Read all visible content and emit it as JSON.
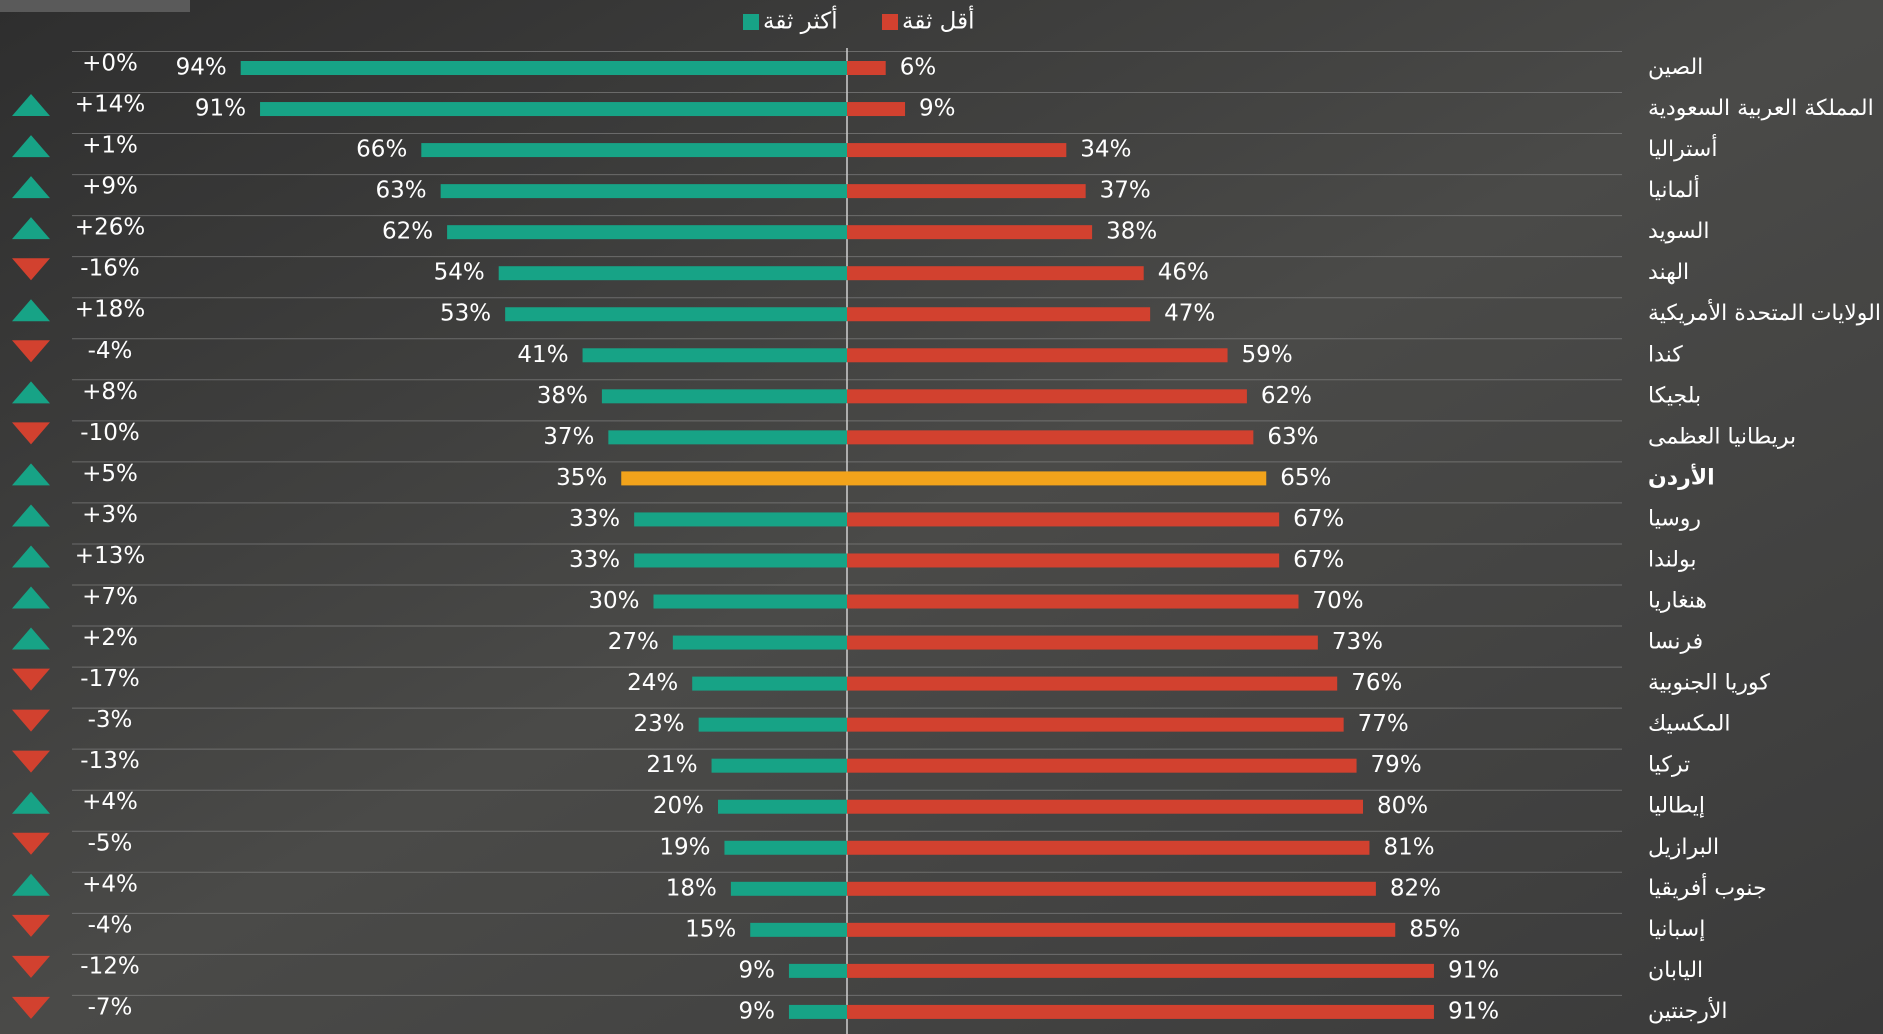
{
  "chart_data": {
    "type": "diverging-bar",
    "categories": [
      "الصين",
      "المملكة العربية السعودية",
      "أستراليا",
      "ألمانيا",
      "السويد",
      "الهند",
      "الولايات المتحدة الأمريكية",
      "كندا",
      "بلجيكا",
      "بريطانيا العظمى",
      "الأردن",
      "روسيا",
      "بولندا",
      "هنغاريا",
      "فرنسا",
      "كوريا الجنوبية",
      "المكسيك",
      "تركيا",
      "إيطاليا",
      "البرازيل",
      "جنوب أفريقيا",
      "إسبانيا",
      "اليابان",
      "الأرجنتين"
    ],
    "series": [
      {
        "name": "أكثر ثقة",
        "color": "#17a386",
        "values": [
          94,
          91,
          66,
          63,
          62,
          54,
          53,
          41,
          38,
          37,
          35,
          33,
          33,
          30,
          27,
          24,
          23,
          21,
          20,
          19,
          18,
          15,
          9,
          9
        ],
        "value_labels": [
          "94%",
          "91%",
          "66%",
          "63%",
          "62%",
          "54%",
          "53%",
          "41%",
          "38%",
          "37%",
          "35%",
          "33%",
          "33%",
          "30%",
          "27%",
          "24%",
          "23%",
          "21%",
          "20%",
          "19%",
          "18%",
          "15%",
          "9%",
          "9%"
        ]
      },
      {
        "name": "أقل ثقة",
        "color": "#d2412f",
        "values": [
          6,
          9,
          34,
          37,
          38,
          46,
          47,
          59,
          62,
          63,
          65,
          67,
          67,
          70,
          73,
          76,
          77,
          79,
          80,
          81,
          82,
          85,
          91,
          91
        ],
        "value_labels": [
          "6%",
          "9%",
          "34%",
          "37%",
          "38%",
          "46%",
          "47%",
          "59%",
          "62%",
          "63%",
          "65%",
          "67%",
          "67%",
          "70%",
          "73%",
          "76%",
          "77%",
          "79%",
          "80%",
          "81%",
          "82%",
          "85%",
          "91%",
          "91%"
        ]
      }
    ],
    "change": {
      "values": [
        0,
        14,
        1,
        9,
        26,
        -16,
        18,
        -4,
        8,
        -10,
        5,
        3,
        13,
        7,
        2,
        -17,
        -3,
        -13,
        4,
        -5,
        4,
        -4,
        -12,
        -7
      ],
      "value_labels": [
        "+0%",
        "+14%",
        "+1%",
        "+9%",
        "+26%",
        "-16%",
        "+18%",
        "-4%",
        "+8%",
        "-10%",
        "+5%",
        "+3%",
        "+13%",
        "+7%",
        "+2%",
        "-17%",
        "-3%",
        "-13%",
        "+4%",
        "-5%",
        "+4%",
        "-4%",
        "-12%",
        "-7%"
      ],
      "up_color": "#17a386",
      "down_color": "#d2412f"
    },
    "highlight_category": "الأردن",
    "highlight_color": "#f2a31b"
  }
}
